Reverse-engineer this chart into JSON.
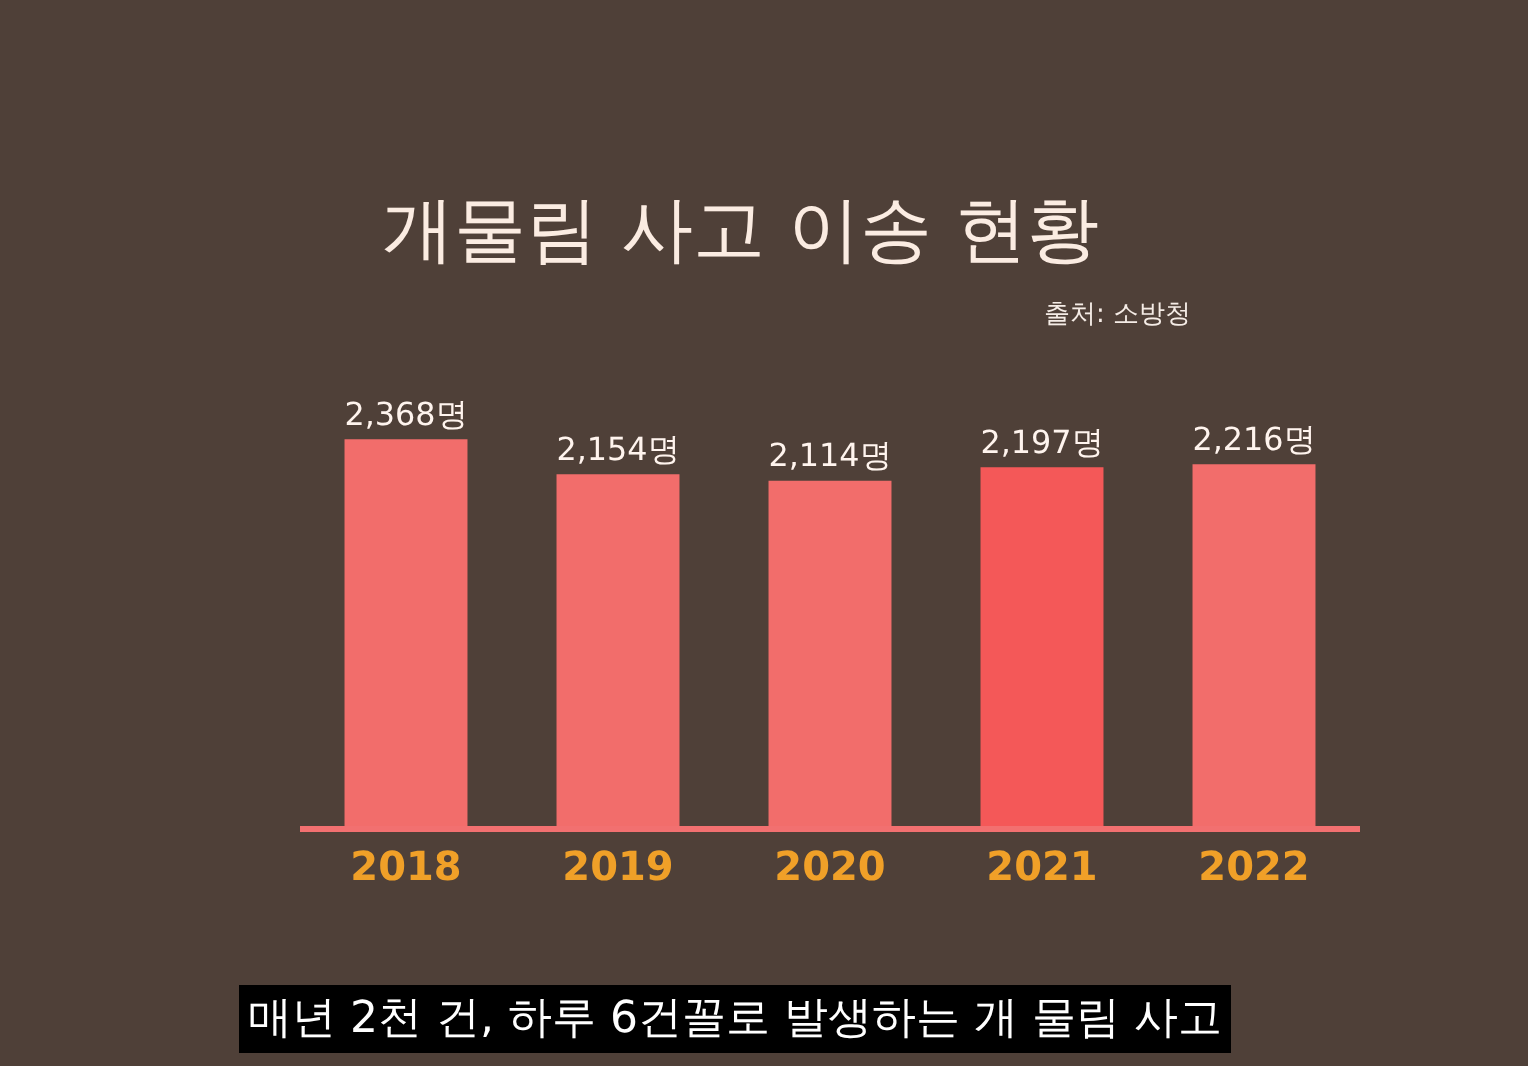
{
  "chart_data": {
    "type": "bar",
    "title": "개물림 사고 이송 현황",
    "categories": [
      "2018",
      "2019",
      "2020",
      "2021",
      "2022"
    ],
    "values": [
      2368,
      2154,
      2114,
      2197,
      2216
    ],
    "colors": [
      "#f26d6b",
      "#f26d6b",
      "#f26d6b",
      "#f45858",
      "#f26d6b"
    ],
    "value_labels": [
      "2,368명",
      "2,154명",
      "2,114명",
      "2,197명",
      "2,216명"
    ],
    "annotations": [
      "출처: 소방청",
      "매년 2천 건, 하루 6건꼴로 발생하는 개 물림 사고"
    ]
  }
}
